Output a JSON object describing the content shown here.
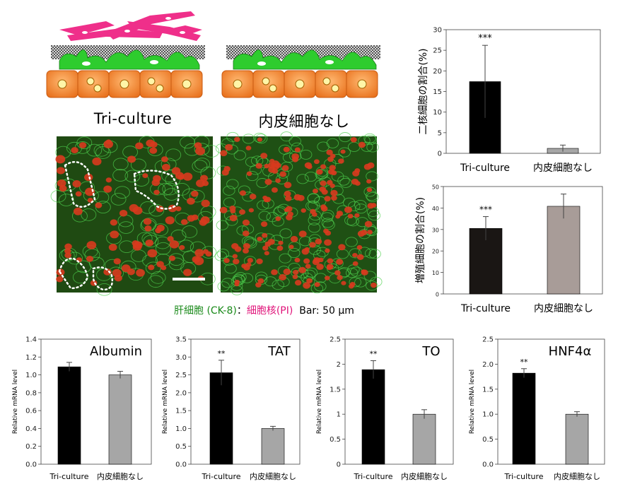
{
  "schematic": {
    "left_label": "Tri-culture",
    "right_label": "内皮細胞なし"
  },
  "micrograph_legend": {
    "hepatocyte_text": "肝細胞 (CK-8)",
    "separator": "：",
    "nucleus_text": "細胞核(PI)",
    "scalebar_text": "Bar: 50 μm",
    "colors": {
      "green": "#1a8a1a",
      "magenta": "#e0147a"
    }
  },
  "chart_data": [
    {
      "id": "binuclear",
      "type": "bar",
      "categories": [
        "Tri-culture",
        "内皮細胞なし"
      ],
      "values": [
        17.4,
        1.2
      ],
      "errors": [
        8.8,
        0.8
      ],
      "significance": [
        "***",
        ""
      ],
      "ylabel": "二核細胞の割合(%)",
      "ylim": [
        0,
        30
      ],
      "yticks": [
        "0",
        "5",
        "10",
        "15",
        "20",
        "25",
        "30"
      ],
      "bar_colors": [
        "#000000",
        "#a6a6a6"
      ]
    },
    {
      "id": "proliferating",
      "type": "bar",
      "categories": [
        "Tri-culture",
        "内皮細胞なし"
      ],
      "values": [
        30.5,
        40.8
      ],
      "errors": [
        5.5,
        5.7
      ],
      "significance": [
        "***",
        ""
      ],
      "ylabel": "増殖細胞の割合(%)",
      "ylim": [
        0,
        50
      ],
      "yticks": [
        "0",
        "10",
        "20",
        "30",
        "40",
        "50"
      ],
      "bar_colors": [
        "#1a1614",
        "#a89c98"
      ]
    },
    {
      "id": "albumin",
      "type": "bar",
      "title": "Albumin",
      "categories": [
        "Tri-culture",
        "内皮細胞なし"
      ],
      "values": [
        1.09,
        1.0
      ],
      "errors": [
        0.05,
        0.04
      ],
      "significance": [
        "",
        ""
      ],
      "ylabel": "Relative mRNA level",
      "ylim": [
        0,
        1.4
      ],
      "yticks": [
        "0.0",
        "0.2",
        "0.4",
        "0.6",
        "0.8",
        "1.0",
        "1.2",
        "1.4"
      ],
      "bar_colors": [
        "#000000",
        "#a6a6a6"
      ]
    },
    {
      "id": "tat",
      "type": "bar",
      "title": "TAT",
      "categories": [
        "Tri-culture",
        "内皮細胞なし"
      ],
      "values": [
        2.56,
        1.0
      ],
      "errors": [
        0.35,
        0.06
      ],
      "significance": [
        "**",
        ""
      ],
      "ylabel": "Relative mRNA level",
      "ylim": [
        0,
        3.5
      ],
      "yticks": [
        "0.0",
        "0.5",
        "1.0",
        "1.5",
        "2.0",
        "2.5",
        "3.0",
        "3.5"
      ],
      "bar_colors": [
        "#000000",
        "#a6a6a6"
      ]
    },
    {
      "id": "to",
      "type": "bar",
      "title": "TO",
      "categories": [
        "Tri-culture",
        "内皮細胞なし"
      ],
      "values": [
        1.89,
        1.0
      ],
      "errors": [
        0.18,
        0.09
      ],
      "significance": [
        "**",
        ""
      ],
      "ylabel": "Relative mRNA level",
      "ylim": [
        0,
        2.5
      ],
      "yticks": [
        "0",
        "0.5",
        "1",
        "1.5",
        "2",
        "2.5"
      ],
      "bar_colors": [
        "#000000",
        "#a6a6a6"
      ]
    },
    {
      "id": "hnf4a",
      "type": "bar",
      "title": "HNF4α",
      "categories": [
        "Tri-culture",
        "内皮細胞なし"
      ],
      "values": [
        1.82,
        1.0
      ],
      "errors": [
        0.09,
        0.05
      ],
      "significance": [
        "**",
        ""
      ],
      "ylabel": "Relative mRNA level",
      "ylim": [
        0,
        2.5
      ],
      "yticks": [
        "0.0",
        "0.5",
        "1.0",
        "1.5",
        "2.0",
        "2.5"
      ],
      "bar_colors": [
        "#000000",
        "#a6a6a6"
      ]
    }
  ]
}
